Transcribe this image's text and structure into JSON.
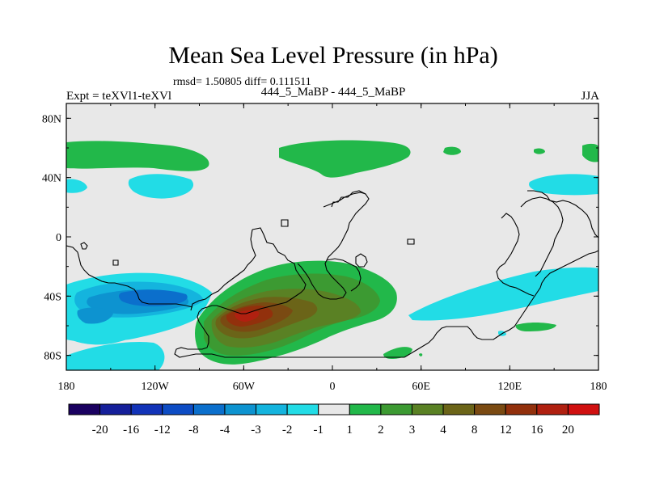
{
  "title": "Mean Sea Level Pressure (in hPa)",
  "stats_line": "rmsd= 1.50805 diff= 0.111511",
  "subtitle": "444_5_MaBP - 444_5_MaBP",
  "left_label": "Expt = teXVl1-teXVl",
  "right_label": "JJA",
  "map": {
    "projection": "cylindrical equidistant",
    "lon_range": [
      -180,
      180
    ],
    "lat_range": [
      -90,
      90
    ],
    "x_ticks": [
      "180",
      "120W",
      "60W",
      "0",
      "60E",
      "120E",
      "180"
    ],
    "y_ticks": [
      "80N",
      "40N",
      "0",
      "40S",
      "80S"
    ]
  },
  "colorbar": {
    "labels": [
      "-20",
      "-16",
      "-12",
      "-8",
      "-4",
      "-3",
      "-2",
      "-1",
      "1",
      "2",
      "3",
      "4",
      "8",
      "12",
      "16",
      "20"
    ],
    "colors": [
      "#1a0060",
      "#151f9a",
      "#1233b8",
      "#0d4cc4",
      "#0b6fcc",
      "#0d93d0",
      "#14b4de",
      "#22dce6",
      "#e8e8e8",
      "#22b84a",
      "#3c9a32",
      "#5a8124",
      "#6b6418",
      "#7a4a12",
      "#92300c",
      "#b02010",
      "#d01010"
    ]
  },
  "colors": {
    "background": "#e8e8e8",
    "coast": "#000000"
  }
}
